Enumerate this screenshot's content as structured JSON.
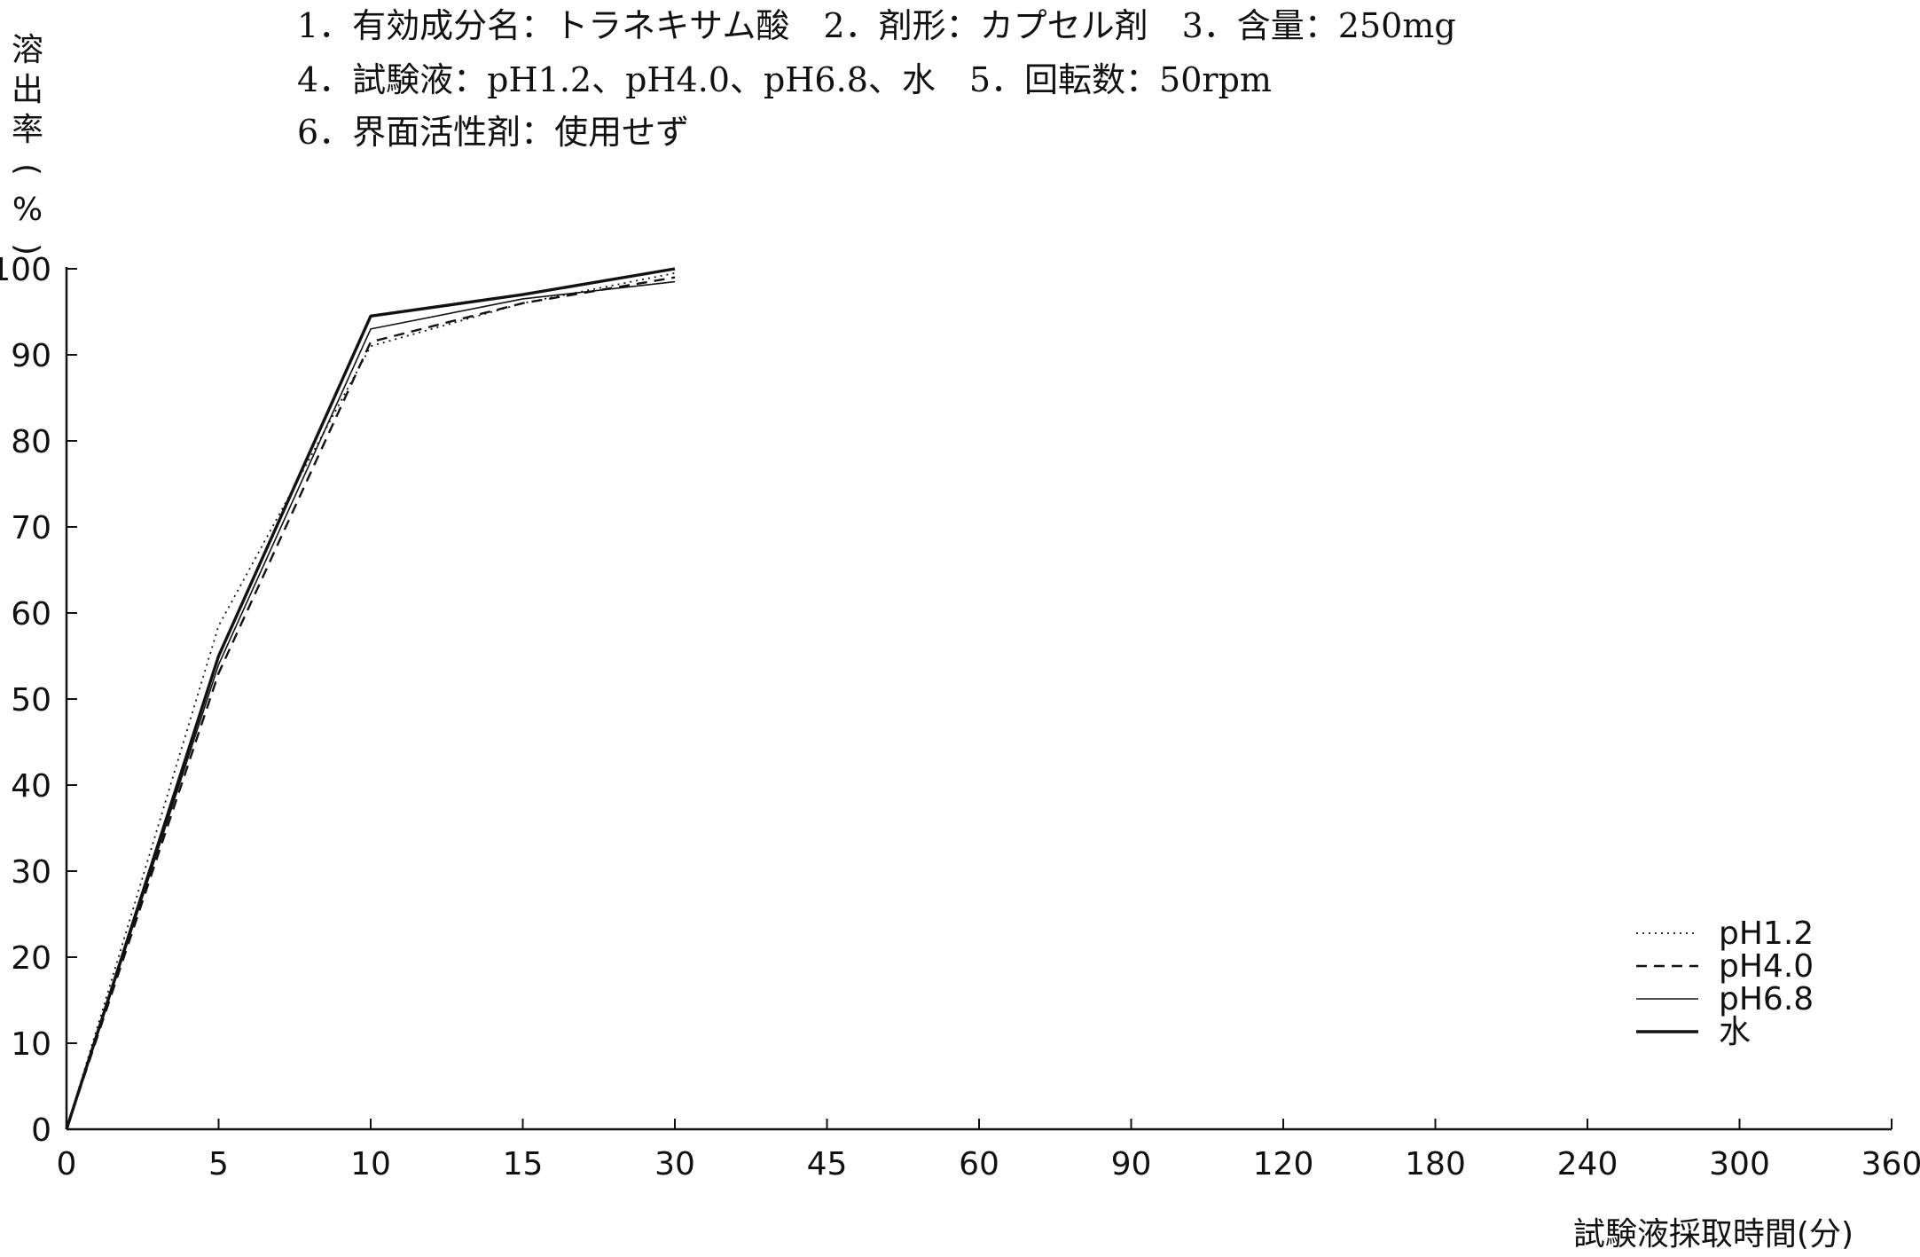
{
  "header": {
    "lines": [
      "1．有効成分名：トラネキサム酸　2．剤形：カプセル剤　3．含量：250mg",
      "4．試験液：pH1.2、pH4.0、pH6.8、水　5．回転数：50rpm",
      "6．界面活性剤：使用せず"
    ]
  },
  "chart_data": {
    "type": "line",
    "title": "",
    "ylabel": "溶出率(%)",
    "xlabel": "試験液採取時間(分)",
    "ylim": [
      0,
      100
    ],
    "y_ticks": [
      "0",
      "10",
      "20",
      "30",
      "40",
      "50",
      "60",
      "70",
      "80",
      "90",
      "100"
    ],
    "x_categories": [
      "0",
      "5",
      "10",
      "15",
      "30",
      "45",
      "60",
      "90",
      "120",
      "180",
      "240",
      "300",
      "360"
    ],
    "x": [
      0,
      5,
      10,
      15,
      30
    ],
    "grid": false,
    "legend_position": "lower-right",
    "series": [
      {
        "name": "pH1.2",
        "style": "dotted",
        "values": [
          0,
          58.5,
          91,
          96,
          99.5
        ]
      },
      {
        "name": "pH4.0",
        "style": "dashed",
        "values": [
          0,
          53,
          91.5,
          96,
          99
        ]
      },
      {
        "name": "pH6.8",
        "style": "thin",
        "values": [
          0,
          54,
          93,
          96.5,
          98.5
        ]
      },
      {
        "name": "水",
        "style": "thick",
        "values": [
          0,
          55,
          94.5,
          97,
          100
        ]
      }
    ]
  }
}
